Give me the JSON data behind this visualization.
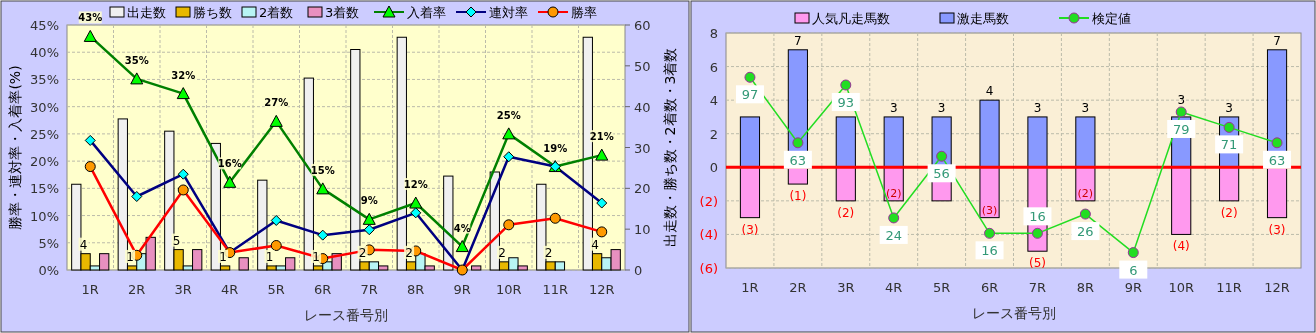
{
  "chart_data": [
    {
      "type": "bar",
      "categories": [
        "1R",
        "2R",
        "3R",
        "4R",
        "5R",
        "6R",
        "7R",
        "8R",
        "9R",
        "10R",
        "11R",
        "12R"
      ],
      "xlabel": "レース番号別",
      "ylabel": "勝率・連対率・入着率(%)",
      "y2label": "出走数・勝ち数・2着数・3着数",
      "ylim": [
        0,
        45
      ],
      "yticks": [
        {
          "value": 0,
          "label": "0%"
        },
        {
          "value": 5,
          "label": "5%"
        },
        {
          "value": 10,
          "label": "10%"
        },
        {
          "value": 15,
          "label": "15%"
        },
        {
          "value": 20,
          "label": "20%"
        },
        {
          "value": 25,
          "label": "25%"
        },
        {
          "value": 30,
          "label": "30%"
        },
        {
          "value": 35,
          "label": "35%"
        },
        {
          "value": 40,
          "label": "40%"
        },
        {
          "value": 45,
          "label": "45%"
        }
      ],
      "y2lim": [
        0,
        60
      ],
      "y2ticks": [
        0,
        10,
        20,
        30,
        40,
        50,
        60
      ],
      "grid": true,
      "legend": "top",
      "series": [
        {
          "name": "出走数",
          "color": "#f0f0f0",
          "axis": "y2",
          "values": [
            21,
            37,
            34,
            31,
            22,
            47,
            54,
            57,
            23,
            24,
            21,
            57
          ]
        },
        {
          "name": "勝ち数",
          "color": "#e8b800",
          "axis": "y2",
          "values": [
            4,
            1,
            5,
            1,
            1,
            1,
            2,
            2,
            0,
            2,
            2,
            4
          ],
          "value_labels": [
            "4",
            "1",
            "5",
            "1",
            "1",
            "1",
            "2",
            "2",
            null,
            "2",
            "2",
            "4"
          ]
        },
        {
          "name": "2着数",
          "color": "#b8f4f4",
          "axis": "y2",
          "values": [
            1,
            4,
            1,
            0,
            1,
            2,
            2,
            4,
            0,
            3,
            2,
            3
          ]
        },
        {
          "name": "3着数",
          "color": "#e890c0",
          "axis": "y2",
          "values": [
            4,
            8,
            5,
            3,
            3,
            4,
            1,
            1,
            1,
            1,
            0,
            5
          ]
        },
        {
          "name": "入着率",
          "type": "line",
          "color": "#008000",
          "marker": "triangle",
          "values": [
            42.9,
            35.1,
            32.4,
            16.1,
            27.3,
            14.9,
            9.3,
            12.3,
            4.3,
            25.0,
            19.0,
            21.1
          ],
          "value_labels": [
            "43%",
            "35%",
            "32%",
            "16%",
            "27%",
            "15%",
            "9%",
            "12%",
            "4%",
            "25%",
            "19%",
            "21%"
          ]
        },
        {
          "name": "連対率",
          "type": "line",
          "color": "#000080",
          "marker": "diamond",
          "values": [
            23.8,
            13.5,
            17.6,
            3.2,
            9.1,
            6.4,
            7.4,
            10.5,
            0,
            20.8,
            19.0,
            12.3
          ]
        },
        {
          "name": "勝率",
          "type": "line",
          "color": "#ff0000",
          "marker": "circle",
          "values": [
            19.0,
            2.7,
            14.7,
            3.2,
            4.5,
            2.1,
            3.7,
            3.5,
            0,
            8.3,
            9.5,
            7.0
          ]
        }
      ]
    },
    {
      "type": "bar",
      "stacked": true,
      "categories": [
        "1R",
        "2R",
        "3R",
        "4R",
        "5R",
        "6R",
        "7R",
        "8R",
        "9R",
        "10R",
        "11R",
        "12R"
      ],
      "xlabel": "レース番号別",
      "ylim": [
        -6,
        8
      ],
      "yticks": [
        {
          "value": -6,
          "label": "(6)"
        },
        {
          "value": -4,
          "label": "(4)"
        },
        {
          "value": -2,
          "label": "(2)"
        },
        0,
        2,
        4,
        6,
        8
      ],
      "y2lim": [
        -2,
        120
      ],
      "tick_labels": "xy",
      "grid": true,
      "legend": "top",
      "ref_lines": [
        {
          "axis": "y",
          "value": 0,
          "color": "#ff0000"
        }
      ],
      "series": [
        {
          "name": "人気凡走馬数",
          "color": "#ff99ee",
          "values": [
            -3,
            -1,
            -2,
            -2,
            -2,
            -3,
            -5,
            -2,
            0,
            -4,
            -2,
            -3
          ],
          "value_labels": [
            "(3)",
            "(1)",
            "(2)",
            "(2)",
            null,
            "(3)",
            "(5)",
            "(2)",
            null,
            "(4)",
            "(2)",
            "(3)"
          ]
        },
        {
          "name": "激走馬数",
          "color": "#8899ff",
          "values": [
            3,
            7,
            3,
            3,
            3,
            4,
            3,
            3,
            0,
            3,
            3,
            7
          ],
          "value_labels": [
            null,
            "7",
            null,
            "3",
            "3",
            "4",
            "3",
            "3",
            null,
            "3",
            "3",
            "7"
          ]
        },
        {
          "name": "検定値",
          "type": "line",
          "axis": "y2",
          "color": "#22dd22",
          "marker": "circle",
          "values": [
            97,
            63,
            93,
            24,
            56,
            16,
            16,
            26,
            6,
            79,
            71,
            63
          ],
          "value_labels": [
            "97",
            "63",
            "93",
            "24",
            "56",
            "16",
            "16",
            "26",
            "6",
            "79",
            "71",
            "63"
          ]
        }
      ]
    }
  ]
}
